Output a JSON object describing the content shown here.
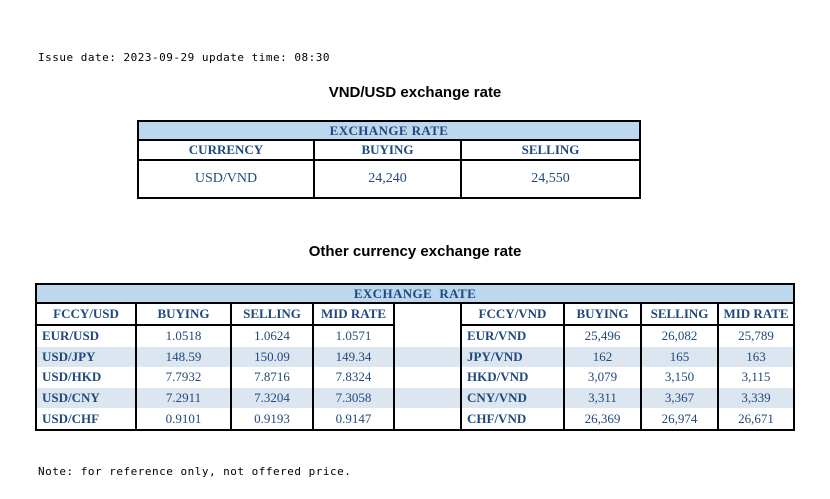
{
  "meta": {
    "issue_line": "Issue date: 2023-09-29 update time: 08:30",
    "note_line": "Note: for reference only, not offered price."
  },
  "colors": {
    "banner_bg": "#BDD7EE",
    "stripe_bg": "#DCE6F1",
    "text_blue": "#1F497D"
  },
  "usd_table": {
    "title": "VND/USD exchange rate",
    "banner": "EXCHANGE RATE",
    "columns": [
      "CURRENCY",
      "BUYING",
      "SELLING"
    ],
    "row": {
      "currency": "USD/VND",
      "buying": "24,240",
      "selling": "24,550"
    }
  },
  "other_table": {
    "title": "Other currency exchange rate",
    "banner": "EXCHANGE  RATE",
    "left": {
      "columns": [
        "FCCY/USD",
        "BUYING",
        "SELLING",
        "MID RATE"
      ],
      "rows": [
        {
          "pair": "EUR/USD",
          "buying": "1.0518",
          "selling": "1.0624",
          "mid": "1.0571"
        },
        {
          "pair": "USD/JPY",
          "buying": "148.59",
          "selling": "150.09",
          "mid": "149.34"
        },
        {
          "pair": "USD/HKD",
          "buying": "7.7932",
          "selling": "7.8716",
          "mid": "7.8324"
        },
        {
          "pair": "USD/CNY",
          "buying": "7.2911",
          "selling": "7.3204",
          "mid": "7.3058"
        },
        {
          "pair": "USD/CHF",
          "buying": "0.9101",
          "selling": "0.9193",
          "mid": "0.9147"
        }
      ]
    },
    "right": {
      "columns": [
        "FCCY/VND",
        "BUYING",
        "SELLING",
        "MID RATE"
      ],
      "rows": [
        {
          "pair": "EUR/VND",
          "buying": "25,496",
          "selling": "26,082",
          "mid": "25,789"
        },
        {
          "pair": "JPY/VND",
          "buying": "162",
          "selling": "165",
          "mid": "163"
        },
        {
          "pair": "HKD/VND",
          "buying": "3,079",
          "selling": "3,150",
          "mid": "3,115"
        },
        {
          "pair": "CNY/VND",
          "buying": "3,311",
          "selling": "3,367",
          "mid": "3,339"
        },
        {
          "pair": "CHF/VND",
          "buying": "26,369",
          "selling": "26,974",
          "mid": "26,671"
        }
      ]
    }
  }
}
